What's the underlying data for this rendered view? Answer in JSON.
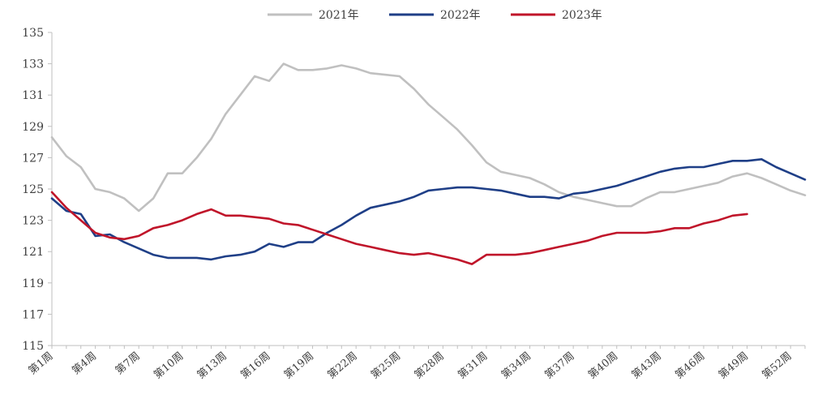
{
  "chart_data": {
    "type": "line",
    "title": "",
    "xlabel": "",
    "ylabel": "",
    "ylim": [
      115,
      135
    ],
    "yticks": [
      115,
      117,
      119,
      121,
      123,
      125,
      127,
      129,
      131,
      133,
      135
    ],
    "x_tick_labels": [
      "第1周",
      "第4周",
      "第7周",
      "第10周",
      "第13周",
      "第16周",
      "第19周",
      "第22周",
      "第25周",
      "第28周",
      "第31周",
      "第34周",
      "第37周",
      "第40周",
      "第43周",
      "第46周",
      "第49周",
      "第52周"
    ],
    "x_range": [
      1,
      53
    ],
    "grid": false,
    "legend_position": "top-center",
    "series": [
      {
        "name": "2021年",
        "color": "#c0c0c0",
        "x": [
          1,
          2,
          3,
          4,
          5,
          6,
          7,
          8,
          9,
          10,
          11,
          12,
          13,
          14,
          15,
          16,
          17,
          18,
          19,
          20,
          21,
          22,
          23,
          24,
          25,
          26,
          27,
          28,
          29,
          30,
          31,
          32,
          33,
          34,
          35,
          36,
          37,
          38,
          39,
          40,
          41,
          42,
          43,
          44,
          45,
          46,
          47,
          48,
          49,
          50,
          51,
          52,
          53
        ],
        "values": [
          128.3,
          127.1,
          126.4,
          125.0,
          124.8,
          124.4,
          123.6,
          124.4,
          126.0,
          126.0,
          127.0,
          128.2,
          129.8,
          131.0,
          132.2,
          131.9,
          133.0,
          132.6,
          132.6,
          132.7,
          132.9,
          132.7,
          132.4,
          132.3,
          132.2,
          131.4,
          130.4,
          129.6,
          128.8,
          127.8,
          126.7,
          126.1,
          125.9,
          125.7,
          125.3,
          124.8,
          124.5,
          124.3,
          124.1,
          123.9,
          123.9,
          124.4,
          124.8,
          124.8,
          125.0,
          125.2,
          125.4,
          125.8,
          126.0,
          125.7,
          125.3,
          124.9,
          124.6
        ]
      },
      {
        "name": "2022年",
        "color": "#1f3f87",
        "x": [
          1,
          2,
          3,
          4,
          5,
          6,
          7,
          8,
          9,
          10,
          11,
          12,
          13,
          14,
          15,
          16,
          17,
          18,
          19,
          20,
          21,
          22,
          23,
          24,
          25,
          26,
          27,
          28,
          29,
          30,
          31,
          32,
          33,
          34,
          35,
          36,
          37,
          38,
          39,
          40,
          41,
          42,
          43,
          44,
          45,
          46,
          47,
          48,
          49,
          50,
          51,
          52,
          53
        ],
        "values": [
          124.4,
          123.6,
          123.4,
          122.0,
          122.1,
          121.6,
          121.2,
          120.8,
          120.6,
          120.6,
          120.6,
          120.5,
          120.7,
          120.8,
          121.0,
          121.5,
          121.3,
          121.6,
          121.6,
          122.2,
          122.7,
          123.3,
          123.8,
          124.0,
          124.2,
          124.5,
          124.9,
          125.0,
          125.1,
          125.1,
          125.0,
          124.9,
          124.7,
          124.5,
          124.5,
          124.4,
          124.7,
          124.8,
          125.0,
          125.2,
          125.5,
          125.8,
          126.1,
          126.3,
          126.4,
          126.4,
          126.6,
          126.8,
          126.8,
          126.9,
          126.4,
          126.0,
          125.6
        ]
      },
      {
        "name": "2023年",
        "color": "#c0152a",
        "x": [
          1,
          2,
          3,
          4,
          5,
          6,
          7,
          8,
          9,
          10,
          11,
          12,
          13,
          14,
          15,
          16,
          17,
          18,
          19,
          20,
          21,
          22,
          23,
          24,
          25,
          26,
          27,
          28,
          29,
          30,
          31,
          32,
          33,
          34,
          35,
          36,
          37,
          38,
          39,
          40,
          41,
          42,
          43,
          44,
          45,
          46,
          47,
          48,
          49
        ],
        "values": [
          124.8,
          123.8,
          123.0,
          122.2,
          121.9,
          121.8,
          122.0,
          122.5,
          122.7,
          123.0,
          123.4,
          123.7,
          123.3,
          123.3,
          123.2,
          123.1,
          122.8,
          122.7,
          122.4,
          122.1,
          121.8,
          121.5,
          121.3,
          121.1,
          120.9,
          120.8,
          120.9,
          120.7,
          120.5,
          120.2,
          120.8,
          120.8,
          120.8,
          120.9,
          121.1,
          121.3,
          121.5,
          121.7,
          122.0,
          122.2,
          122.2,
          122.2,
          122.3,
          122.5,
          122.5,
          122.8,
          123.0,
          123.3,
          123.4
        ]
      }
    ]
  }
}
